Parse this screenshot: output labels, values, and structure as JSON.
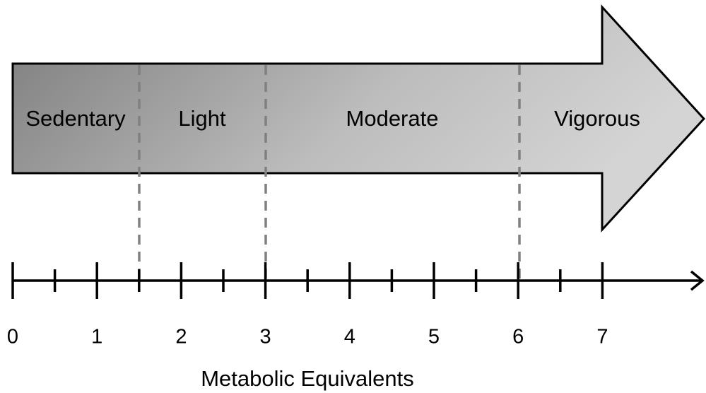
{
  "segments": [
    "Sedentary",
    "Light",
    "Moderate",
    "Vigorous"
  ],
  "axis": {
    "title": "Metabolic Equivalents",
    "ticks": [
      0,
      1,
      2,
      3,
      4,
      5,
      6,
      7
    ]
  }
}
